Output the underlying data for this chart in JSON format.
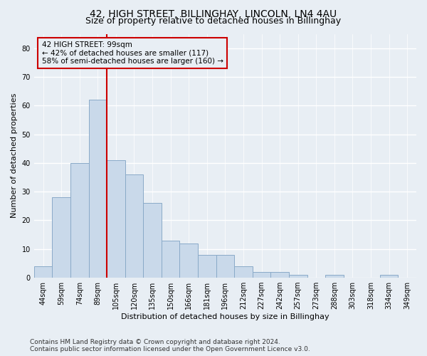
{
  "title1": "42, HIGH STREET, BILLINGHAY, LINCOLN, LN4 4AU",
  "title2": "Size of property relative to detached houses in Billinghay",
  "xlabel": "Distribution of detached houses by size in Billinghay",
  "ylabel": "Number of detached properties",
  "bar_labels": [
    "44sqm",
    "59sqm",
    "74sqm",
    "89sqm",
    "105sqm",
    "120sqm",
    "135sqm",
    "150sqm",
    "166sqm",
    "181sqm",
    "196sqm",
    "212sqm",
    "227sqm",
    "242sqm",
    "257sqm",
    "273sqm",
    "288sqm",
    "303sqm",
    "318sqm",
    "334sqm",
    "349sqm"
  ],
  "bar_heights": [
    4,
    28,
    40,
    62,
    41,
    36,
    26,
    13,
    12,
    8,
    8,
    4,
    2,
    2,
    1,
    0,
    1,
    0,
    0,
    1,
    0
  ],
  "bar_color": "#c9d9ea",
  "bar_edge_color": "#8aaac8",
  "vline_x_idx": 4,
  "vline_color": "#cc0000",
  "ylim": [
    0,
    85
  ],
  "yticks": [
    0,
    10,
    20,
    30,
    40,
    50,
    60,
    70,
    80
  ],
  "annotation_text": "42 HIGH STREET: 99sqm\n← 42% of detached houses are smaller (117)\n58% of semi-detached houses are larger (160) →",
  "annotation_box_color": "#cc0000",
  "footnote1": "Contains HM Land Registry data © Crown copyright and database right 2024.",
  "footnote2": "Contains public sector information licensed under the Open Government Licence v3.0.",
  "bg_color": "#e8eef4",
  "grid_color": "#ffffff",
  "title_fontsize": 10,
  "subtitle_fontsize": 9,
  "label_fontsize": 8,
  "tick_fontsize": 7,
  "footnote_fontsize": 6.5,
  "ann_fontsize": 7.5
}
